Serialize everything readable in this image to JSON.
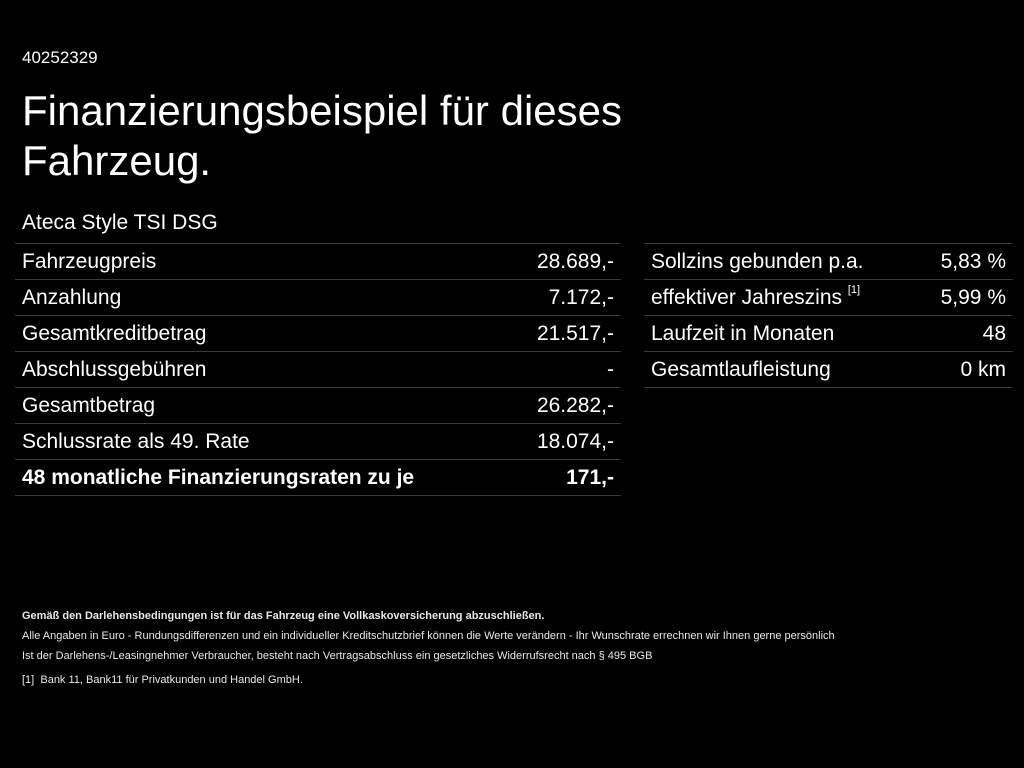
{
  "id_number": "40252329",
  "title": "Finanzierungsbeispiel für dieses Fahrzeug.",
  "model": "Ateca Style TSI DSG",
  "left_table": [
    {
      "label": "Fahrzeugpreis",
      "value": "28.689,-"
    },
    {
      "label": "Anzahlung",
      "value": "7.172,-"
    },
    {
      "label": "Gesamtkreditbetrag",
      "value": "21.517,-"
    },
    {
      "label": "Abschlussgebühren",
      "value": "-"
    },
    {
      "label": "Gesamtbetrag",
      "value": "26.282,-"
    },
    {
      "label": "Schlussrate als 49. Rate",
      "value": "18.074,-"
    },
    {
      "label": "48 monatliche Finanzierungsraten zu je",
      "value": "171,-"
    }
  ],
  "right_table": [
    {
      "label": "Sollzins gebunden p.a.",
      "sup": "",
      "value": "5,83 %"
    },
    {
      "label": "effektiver Jahreszins",
      "sup": "[1]",
      "value": "5,99 %"
    },
    {
      "label": "Laufzeit in Monaten",
      "sup": "",
      "value": "48"
    },
    {
      "label": "Gesamtlaufleistung",
      "sup": "",
      "value": "0 km"
    }
  ],
  "notes": {
    "bold": "Gemäß den Darlehensbedingungen ist für das Fahrzeug eine Vollkaskoversicherung abzuschließen.",
    "line1": "Alle Angaben in Euro - Rundungsdifferenzen und ein individueller Kreditschutzbrief können die Werte verändern - Ihr Wunschrate errechnen wir Ihnen gerne persönlich",
    "line2": "Ist der Darlehens-/Leasingnehmer Verbraucher, besteht nach Vertragsabschluss ein gesetzliches Widerrufsrecht nach § 495 BGB",
    "footnote_mark": "[1]",
    "footnote": "Bank 11, Bank11 für Privatkunden und Handel GmbH."
  }
}
